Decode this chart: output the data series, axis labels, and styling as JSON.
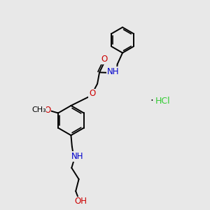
{
  "bg_color": "#e8e8e8",
  "bond_color": "#000000",
  "O_color": "#cc0000",
  "N_color": "#0000cc",
  "C_color": "#000000",
  "Cl_color": "#33cc33",
  "bond_lw": 1.4,
  "font_size": 8.5,
  "xlim": [
    0,
    10
  ],
  "ylim": [
    0,
    10
  ]
}
